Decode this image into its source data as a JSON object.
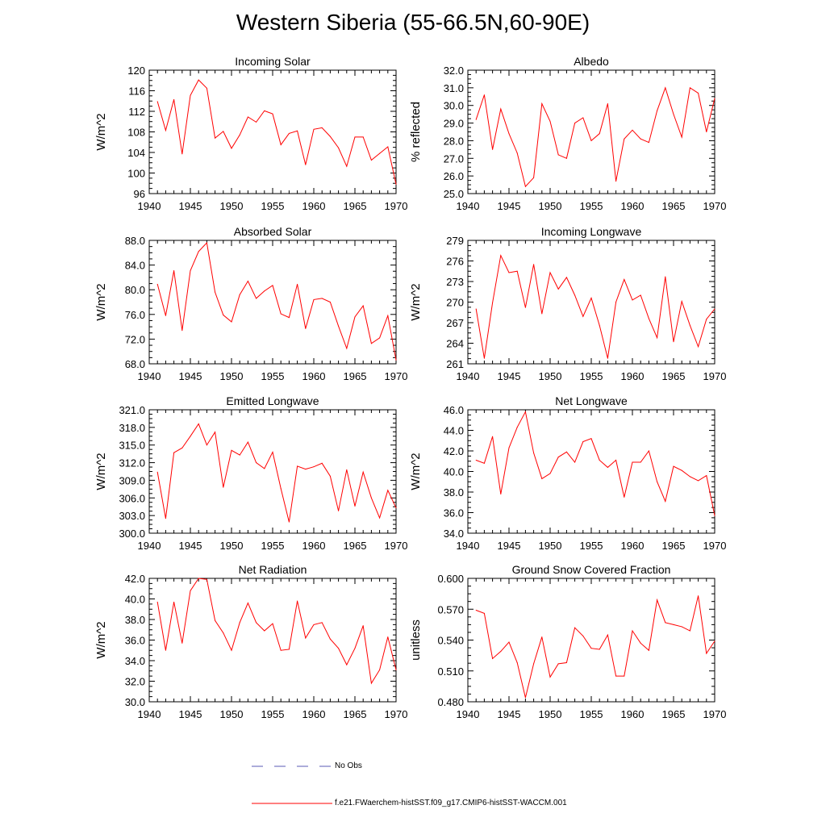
{
  "title": "Western Siberia (55-66.5N,60-90E)",
  "legend": {
    "obs_label": "No Obs",
    "model_label": "f.e21.FWaerchem-histSST.f09_g17.CMIP6-histSST-WACCM.001",
    "obs_color": "#5a5ab4",
    "model_color": "#ff0000"
  },
  "chart_data": [
    {
      "type": "line",
      "title": "Incoming Solar",
      "ylabel": "W/m^2",
      "xlim": [
        1940,
        1970
      ],
      "ylim": [
        96,
        120
      ],
      "xticks": [
        "1940",
        "1945",
        "1950",
        "1955",
        "1960",
        "1965",
        "1970"
      ],
      "yticks": [
        "96",
        "100",
        "104",
        "108",
        "112",
        "116",
        "120"
      ],
      "x": [
        1941,
        1942,
        1943,
        1944,
        1945,
        1946,
        1947,
        1948,
        1949,
        1950,
        1951,
        1952,
        1953,
        1954,
        1955,
        1956,
        1957,
        1958,
        1959,
        1960,
        1961,
        1962,
        1963,
        1964,
        1965,
        1966,
        1967,
        1968,
        1969,
        1970
      ],
      "series": [
        {
          "values": [
            113.9,
            108.3,
            114.3,
            103.7,
            115.1,
            118.1,
            116.5,
            106.8,
            108.1,
            104.8,
            107.4,
            110.9,
            109.9,
            112.1,
            111.5,
            105.5,
            107.7,
            108.2,
            101.6,
            108.5,
            108.8,
            107.1,
            104.9,
            101.3,
            107.0,
            107.0,
            102.5,
            103.8,
            105.1,
            97.8
          ]
        }
      ]
    },
    {
      "type": "line",
      "title": "Albedo",
      "ylabel": "% reflected",
      "xlim": [
        1940,
        1970
      ],
      "ylim": [
        25.0,
        32.0
      ],
      "xticks": [
        "1940",
        "1945",
        "1950",
        "1955",
        "1960",
        "1965",
        "1970"
      ],
      "yticks": [
        "25.0",
        "26.0",
        "27.0",
        "28.0",
        "29.0",
        "30.0",
        "31.0",
        "32.0"
      ],
      "x": [
        1941,
        1942,
        1943,
        1944,
        1945,
        1946,
        1947,
        1948,
        1949,
        1950,
        1951,
        1952,
        1953,
        1954,
        1955,
        1956,
        1957,
        1958,
        1959,
        1960,
        1961,
        1962,
        1963,
        1964,
        1965,
        1966,
        1967,
        1968,
        1969,
        1970
      ],
      "series": [
        {
          "values": [
            29.2,
            30.6,
            27.5,
            29.8,
            28.4,
            27.3,
            25.4,
            25.9,
            30.1,
            29.1,
            27.2,
            27.0,
            29.0,
            29.3,
            28.0,
            28.4,
            30.1,
            25.7,
            28.1,
            28.6,
            28.1,
            27.9,
            29.7,
            31.0,
            29.5,
            28.2,
            31.0,
            30.7,
            28.5,
            30.4
          ]
        }
      ]
    },
    {
      "type": "line",
      "title": "Absorbed Solar",
      "ylabel": "W/m^2",
      "xlim": [
        1940,
        1970
      ],
      "ylim": [
        68.0,
        88.0
      ],
      "xticks": [
        "1940",
        "1945",
        "1950",
        "1955",
        "1960",
        "1965",
        "1970"
      ],
      "yticks": [
        "68.0",
        "72.0",
        "76.0",
        "80.0",
        "84.0",
        "88.0"
      ],
      "x": [
        1941,
        1942,
        1943,
        1944,
        1945,
        1946,
        1947,
        1948,
        1949,
        1950,
        1951,
        1952,
        1953,
        1954,
        1955,
        1956,
        1957,
        1958,
        1959,
        1960,
        1961,
        1962,
        1963,
        1964,
        1965,
        1966,
        1967,
        1968,
        1969,
        1970
      ],
      "series": [
        {
          "values": [
            80.9,
            75.8,
            83.1,
            73.4,
            83.1,
            86.2,
            87.6,
            79.6,
            75.9,
            74.8,
            79.2,
            81.4,
            78.6,
            79.8,
            80.7,
            76.1,
            75.5,
            80.9,
            73.7,
            78.4,
            78.6,
            78.0,
            74.1,
            70.5,
            75.6,
            77.4,
            71.3,
            72.2,
            75.8,
            68.6
          ]
        }
      ]
    },
    {
      "type": "line",
      "title": "Incoming Longwave",
      "ylabel": "W/m^2",
      "xlim": [
        1940,
        1970
      ],
      "ylim": [
        261,
        279
      ],
      "xticks": [
        "1940",
        "1945",
        "1950",
        "1955",
        "1960",
        "1965",
        "1970"
      ],
      "yticks": [
        "261",
        "264",
        "267",
        "270",
        "273",
        "276",
        "279"
      ],
      "x": [
        1941,
        1942,
        1943,
        1944,
        1945,
        1946,
        1947,
        1948,
        1949,
        1950,
        1951,
        1952,
        1953,
        1954,
        1955,
        1956,
        1957,
        1958,
        1959,
        1960,
        1961,
        1962,
        1963,
        1964,
        1965,
        1966,
        1967,
        1968,
        1969,
        1970
      ],
      "series": [
        {
          "values": [
            269.0,
            261.8,
            269.9,
            276.8,
            274.3,
            274.5,
            269.2,
            275.5,
            268.3,
            274.3,
            271.9,
            273.6,
            271.0,
            267.9,
            270.6,
            266.6,
            261.8,
            270.0,
            273.3,
            270.3,
            271.0,
            267.6,
            264.8,
            273.7,
            264.2,
            270.1,
            266.6,
            263.5,
            267.5,
            269.0
          ]
        }
      ]
    },
    {
      "type": "line",
      "title": "Emitted Longwave",
      "ylabel": "W/m^2",
      "xlim": [
        1940,
        1970
      ],
      "ylim": [
        300.0,
        321.0
      ],
      "xticks": [
        "1940",
        "1945",
        "1950",
        "1955",
        "1960",
        "1965",
        "1970"
      ],
      "yticks": [
        "300.0",
        "303.0",
        "306.0",
        "309.0",
        "312.0",
        "315.0",
        "318.0",
        "321.0"
      ],
      "x": [
        1941,
        1942,
        1943,
        1944,
        1945,
        1946,
        1947,
        1948,
        1949,
        1950,
        1951,
        1952,
        1953,
        1954,
        1955,
        1956,
        1957,
        1958,
        1959,
        1960,
        1961,
        1962,
        1963,
        1964,
        1965,
        1966,
        1967,
        1968,
        1969,
        1970
      ],
      "series": [
        {
          "values": [
            310.4,
            302.5,
            313.7,
            314.5,
            316.5,
            318.6,
            315.0,
            317.2,
            307.8,
            314.1,
            313.3,
            315.5,
            312.0,
            311.0,
            313.8,
            307.6,
            301.9,
            311.4,
            310.9,
            311.3,
            311.9,
            309.7,
            303.8,
            310.8,
            304.6,
            310.4,
            306.0,
            302.6,
            307.3,
            304.3
          ]
        }
      ]
    },
    {
      "type": "line",
      "title": "Net Longwave",
      "ylabel": "W/m^2",
      "xlim": [
        1940,
        1970
      ],
      "ylim": [
        34.0,
        46.0
      ],
      "xticks": [
        "1940",
        "1945",
        "1950",
        "1955",
        "1960",
        "1965",
        "1970"
      ],
      "yticks": [
        "34.0",
        "36.0",
        "38.0",
        "40.0",
        "42.0",
        "44.0",
        "46.0"
      ],
      "x": [
        1941,
        1942,
        1943,
        1944,
        1945,
        1946,
        1947,
        1948,
        1949,
        1950,
        1951,
        1952,
        1953,
        1954,
        1955,
        1956,
        1957,
        1958,
        1959,
        1960,
        1961,
        1962,
        1963,
        1964,
        1965,
        1966,
        1967,
        1968,
        1969,
        1970
      ],
      "series": [
        {
          "values": [
            41.1,
            40.8,
            43.4,
            37.8,
            42.3,
            44.3,
            45.8,
            41.8,
            39.3,
            39.8,
            41.4,
            41.9,
            40.9,
            42.9,
            43.2,
            41.1,
            40.4,
            41.1,
            37.5,
            40.9,
            40.9,
            42.0,
            39.0,
            37.1,
            40.5,
            40.1,
            39.5,
            39.1,
            39.6,
            35.7
          ]
        }
      ]
    },
    {
      "type": "line",
      "title": "Net Radiation",
      "ylabel": "W/m^2",
      "xlim": [
        1940,
        1970
      ],
      "ylim": [
        30.0,
        42.0
      ],
      "xticks": [
        "1940",
        "1945",
        "1950",
        "1955",
        "1960",
        "1965",
        "1970"
      ],
      "yticks": [
        "30.0",
        "32.0",
        "34.0",
        "36.0",
        "38.0",
        "40.0",
        "42.0"
      ],
      "x": [
        1941,
        1942,
        1943,
        1944,
        1945,
        1946,
        1947,
        1948,
        1949,
        1950,
        1951,
        1952,
        1953,
        1954,
        1955,
        1956,
        1957,
        1958,
        1959,
        1960,
        1961,
        1962,
        1963,
        1964,
        1965,
        1966,
        1967,
        1968,
        1969,
        1970
      ],
      "series": [
        {
          "values": [
            39.7,
            35.0,
            39.7,
            35.7,
            40.8,
            42.0,
            41.9,
            37.9,
            36.7,
            35.0,
            37.7,
            39.6,
            37.7,
            36.9,
            37.6,
            35.0,
            35.1,
            39.8,
            36.2,
            37.5,
            37.7,
            36.1,
            35.2,
            33.6,
            35.2,
            37.4,
            31.8,
            33.1,
            36.3,
            33.1
          ]
        }
      ]
    },
    {
      "type": "line",
      "title": "Ground Snow Covered Fraction",
      "ylabel": "unitless",
      "xlim": [
        1940,
        1970
      ],
      "ylim": [
        0.48,
        0.6
      ],
      "xticks": [
        "1940",
        "1945",
        "1950",
        "1955",
        "1960",
        "1965",
        "1970"
      ],
      "yticks": [
        "0.480",
        "0.510",
        "0.540",
        "0.570",
        "0.600"
      ],
      "x": [
        1941,
        1942,
        1943,
        1944,
        1945,
        1946,
        1947,
        1948,
        1949,
        1950,
        1951,
        1952,
        1953,
        1954,
        1955,
        1956,
        1957,
        1958,
        1959,
        1960,
        1961,
        1962,
        1963,
        1964,
        1965,
        1966,
        1967,
        1968,
        1969,
        1970
      ],
      "series": [
        {
          "values": [
            0.569,
            0.566,
            0.522,
            0.529,
            0.538,
            0.518,
            0.484,
            0.517,
            0.543,
            0.504,
            0.517,
            0.518,
            0.552,
            0.544,
            0.532,
            0.531,
            0.545,
            0.505,
            0.505,
            0.549,
            0.537,
            0.53,
            0.579,
            0.557,
            0.555,
            0.553,
            0.549,
            0.583,
            0.527,
            0.539
          ]
        }
      ]
    }
  ]
}
